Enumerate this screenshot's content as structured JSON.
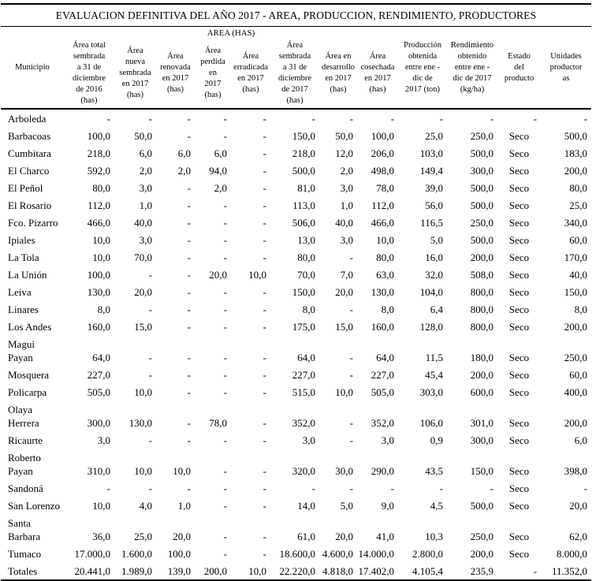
{
  "title": "EVALUACION DEFINITIVA DEL AÑO 2017 - AREA, PRODUCCION, RENDIMIENTO, PRODUCTORES",
  "table": {
    "area_group_label": "AREA (HAS)",
    "col_municipio": "Municipio",
    "area_columns": [
      "Área total\nsembrada\na 31 de\ndiciembre\nde 2016\n(has)",
      "Área\nnueva\nsembrada\nen 2017\n(has)",
      "Área\nrenovada\nen 2017\n(has)",
      "Área\nperdida\nen\n2017\n(has)",
      "Área\nerradicada\nen 2017\n(has)",
      "Área\nsembrada\na 31 de\ndiciembre\nde 2017\n(has)",
      "Área en\ndesarrollo\nen 2017\n(has)",
      "Área\ncosechada\nen 2017\n(has)"
    ],
    "tail_columns": [
      "Producción\nobtenida\nentre ene -\ndic de\n2017 (ton)",
      "Rendimiento\nobtenido\nentre ene -\ndic de 2017\n(kg/ha)",
      "Estado\ndel\nproducto",
      "Unidades\nproductor\nas"
    ],
    "rows": [
      {
        "municipio": "Arboleda",
        "cells": [
          "-",
          "-",
          "-",
          "-",
          "-",
          "-",
          "-",
          "-",
          "-",
          "-",
          "-",
          "-"
        ]
      },
      {
        "municipio": "Barbacoas",
        "cells": [
          "100,0",
          "50,0",
          "-",
          "-",
          "-",
          "150,0",
          "50,0",
          "100,0",
          "25,0",
          "250,0",
          "Seco",
          "500,0"
        ]
      },
      {
        "municipio": "Cumbitara",
        "cells": [
          "218,0",
          "6,0",
          "6,0",
          "6,0",
          "-",
          "218,0",
          "12,0",
          "206,0",
          "103,0",
          "500,0",
          "Seco",
          "183,0"
        ]
      },
      {
        "municipio": "El Charco",
        "cells": [
          "592,0",
          "2,0",
          "2,0",
          "94,0",
          "-",
          "500,0",
          "2,0",
          "498,0",
          "149,4",
          "300,0",
          "Seco",
          "200,0"
        ]
      },
      {
        "municipio": "El Peñol",
        "cells": [
          "80,0",
          "3,0",
          "-",
          "2,0",
          "-",
          "81,0",
          "3,0",
          "78,0",
          "39,0",
          "500,0",
          "Seco",
          "80,0"
        ]
      },
      {
        "municipio": "El Rosario",
        "cells": [
          "112,0",
          "1,0",
          "-",
          "-",
          "-",
          "113,0",
          "1,0",
          "112,0",
          "56,0",
          "500,0",
          "Seco",
          "25,0"
        ]
      },
      {
        "municipio": "Fco. Pizarro",
        "cells": [
          "466,0",
          "40,0",
          "-",
          "-",
          "-",
          "506,0",
          "40,0",
          "466,0",
          "116,5",
          "250,0",
          "Seco",
          "340,0"
        ]
      },
      {
        "municipio": "Ipiales",
        "cells": [
          "10,0",
          "3,0",
          "-",
          "-",
          "-",
          "13,0",
          "3,0",
          "10,0",
          "5,0",
          "500,0",
          "Seco",
          "60,0"
        ]
      },
      {
        "municipio": "La Tola",
        "cells": [
          "10,0",
          "70,0",
          "-",
          "-",
          "-",
          "80,0",
          "-",
          "80,0",
          "16,0",
          "200,0",
          "Seco",
          "170,0"
        ]
      },
      {
        "municipio": "La Unión",
        "cells": [
          "100,0",
          "-",
          "-",
          "20,0",
          "10,0",
          "70,0",
          "7,0",
          "63,0",
          "32,0",
          "508,0",
          "Seco",
          "40,0"
        ]
      },
      {
        "municipio": "Leiva",
        "cells": [
          "130,0",
          "20,0",
          "-",
          "-",
          "-",
          "150,0",
          "20,0",
          "130,0",
          "104,0",
          "800,0",
          "Seco",
          "150,0"
        ]
      },
      {
        "municipio": "Linares",
        "cells": [
          "8,0",
          "-",
          "-",
          "-",
          "-",
          "8,0",
          "-",
          "8,0",
          "6,4",
          "800,0",
          "Seco",
          "8,0"
        ]
      },
      {
        "municipio": "Los Andes",
        "cells": [
          "160,0",
          "15,0",
          "-",
          "-",
          "-",
          "175,0",
          "15,0",
          "160,0",
          "128,0",
          "800,0",
          "Seco",
          "200,0"
        ]
      },
      {
        "municipio": "Magui\nPayan",
        "cells": [
          "64,0",
          "-",
          "-",
          "-",
          "-",
          "64,0",
          "-",
          "64,0",
          "11,5",
          "180,0",
          "Seco",
          "250,0"
        ]
      },
      {
        "municipio": "Mosquera",
        "cells": [
          "227,0",
          "-",
          "-",
          "-",
          "-",
          "227,0",
          "-",
          "227,0",
          "45,4",
          "200,0",
          "Seco",
          "60,0"
        ]
      },
      {
        "municipio": "Policarpa",
        "cells": [
          "505,0",
          "10,0",
          "-",
          "-",
          "-",
          "515,0",
          "10,0",
          "505,0",
          "303,0",
          "600,0",
          "Seco",
          "400,0"
        ]
      },
      {
        "municipio": "Olaya\nHerrera",
        "cells": [
          "300,0",
          "130,0",
          "-",
          "78,0",
          "-",
          "352,0",
          "-",
          "352,0",
          "106,0",
          "301,0",
          "Seco",
          "200,0"
        ]
      },
      {
        "municipio": "Ricaurte",
        "cells": [
          "3,0",
          "-",
          "-",
          "-",
          "-",
          "3,0",
          "-",
          "3,0",
          "0,9",
          "300,0",
          "Seco",
          "6,0"
        ]
      },
      {
        "municipio": "Roberto\nPayan",
        "cells": [
          "310,0",
          "10,0",
          "10,0",
          "-",
          "-",
          "320,0",
          "30,0",
          "290,0",
          "43,5",
          "150,0",
          "Seco",
          "398,0"
        ]
      },
      {
        "municipio": "Sandoná",
        "cells": [
          "-",
          "-",
          "-",
          "-",
          "-",
          "-",
          "-",
          "-",
          "-",
          "-",
          "Seco",
          "-"
        ]
      },
      {
        "municipio": "San Lorenzo",
        "cells": [
          "10,0",
          "4,0",
          "1,0",
          "-",
          "-",
          "14,0",
          "5,0",
          "9,0",
          "4,5",
          "500,0",
          "Seco",
          "20,0"
        ]
      },
      {
        "municipio": "Santa\nBarbara",
        "cells": [
          "36,0",
          "25,0",
          "20,0",
          "-",
          "-",
          "61,0",
          "20,0",
          "41,0",
          "10,3",
          "250,0",
          "Seco",
          "62,0"
        ]
      },
      {
        "municipio": "Tumaco",
        "cells": [
          "17.000,0",
          "1.600,0",
          "100,0",
          "-",
          "-",
          "18.600,0",
          "4.600,0",
          "14.000,0",
          "2.800,0",
          "200,0",
          "Seco",
          "8.000,0"
        ]
      },
      {
        "municipio": "Totales",
        "cells": [
          "20.441,0",
          "1.989,0",
          "139,0",
          "200,0",
          "10,0",
          "22.220,0",
          "4.818,0",
          "17.402,0",
          "4.105,4",
          "235,9",
          "-",
          "11.352,0"
        ]
      }
    ]
  }
}
